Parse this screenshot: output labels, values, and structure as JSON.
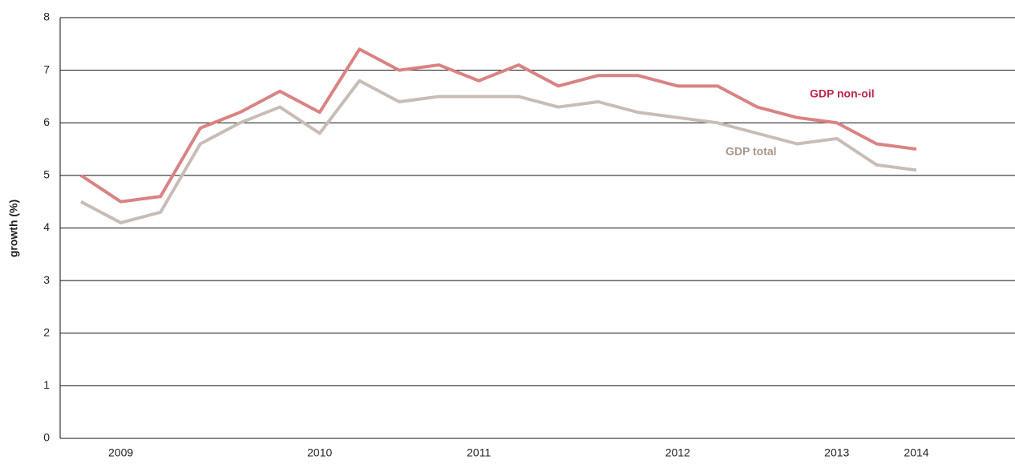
{
  "chart_data": {
    "type": "line",
    "y_label": "growth (%)",
    "categories": [
      null,
      "2009",
      null,
      null,
      null,
      null,
      "2010",
      null,
      null,
      null,
      "2011",
      null,
      null,
      null,
      null,
      "2012",
      null,
      null,
      null,
      "2013",
      null,
      "2014"
    ],
    "series": [
      {
        "name": "GDP non-oil",
        "color": "#d98383",
        "label_color": "#c0244a",
        "values": [
          5.0,
          4.5,
          4.6,
          5.9,
          6.2,
          6.6,
          6.2,
          7.4,
          7.0,
          7.1,
          6.8,
          7.1,
          6.7,
          6.9,
          6.9,
          6.7,
          6.7,
          6.3,
          6.1,
          6.0,
          5.6,
          5.5
        ]
      },
      {
        "name": "GDP total",
        "color": "#c8bdb6",
        "label_color": "#a8958a",
        "values": [
          4.5,
          4.1,
          4.3,
          5.6,
          6.0,
          6.3,
          5.8,
          6.8,
          6.4,
          6.5,
          6.5,
          6.5,
          6.3,
          6.4,
          6.2,
          6.1,
          6.0,
          5.8,
          5.6,
          5.7,
          5.2,
          5.1
        ]
      }
    ],
    "ylim": [
      0,
      8
    ],
    "yticks": [
      0,
      1,
      2,
      3,
      4,
      5,
      6,
      7,
      8
    ],
    "grid": true
  }
}
